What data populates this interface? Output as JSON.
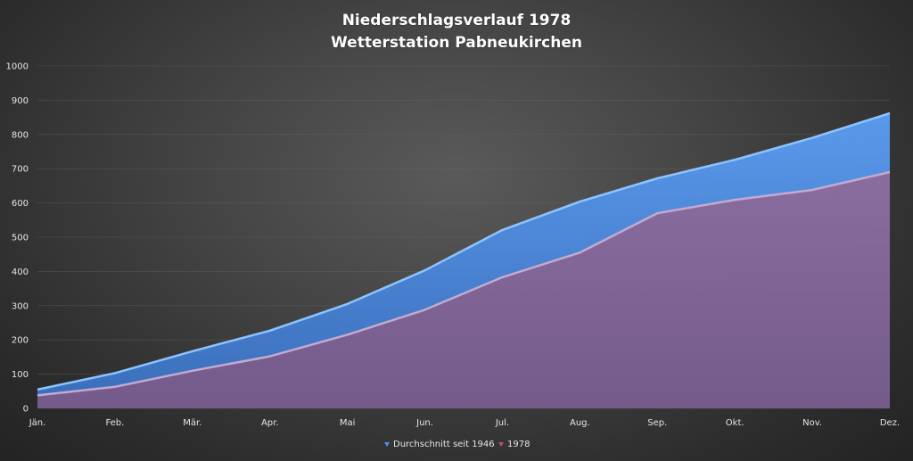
{
  "chart_data": {
    "type": "area",
    "title": "Niederschlagsverlauf 1978",
    "subtitle": "Wetterstation Pabneukirchen",
    "categories": [
      "Jän.",
      "Feb.",
      "Mär.",
      "Apr.",
      "Mai",
      "Jun.",
      "Jul.",
      "Aug.",
      "Sep.",
      "Okt.",
      "Nov.",
      "Dez."
    ],
    "series": [
      {
        "name": "Durchschnitt seit 1946",
        "color": "#4a86d8",
        "values": [
          55,
          103,
          167,
          227,
          305,
          403,
          521,
          604,
          672,
          726,
          790,
          862
        ]
      },
      {
        "name": "1978",
        "color": "#8a6a98",
        "values": [
          38,
          63,
          110,
          152,
          215,
          288,
          383,
          455,
          570,
          609,
          638,
          690
        ]
      }
    ],
    "ylim": [
      0,
      1000
    ],
    "yticks": [
      0,
      100,
      200,
      300,
      400,
      500,
      600,
      700,
      800,
      900,
      1000
    ],
    "grid": true,
    "legend_position": "bottom"
  }
}
